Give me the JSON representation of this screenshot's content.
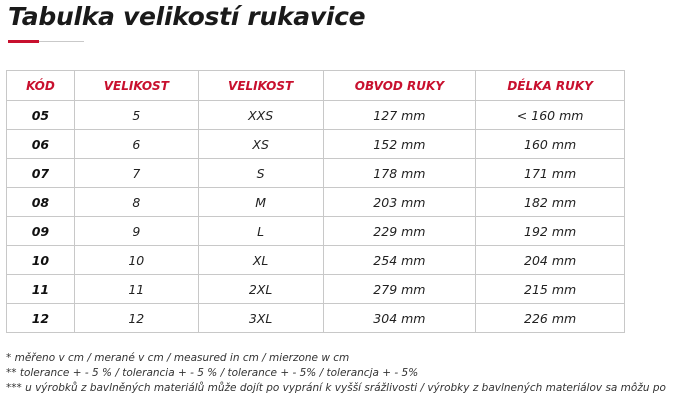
{
  "title": "Tabulka velikostí rukavice",
  "table": {
    "headers": [
      "KÓD",
      "VELIKOST",
      "VELIKOST",
      "OBVOD RUKY",
      "DÉLKA RUKY"
    ],
    "rows": [
      [
        "05",
        "5",
        "XXS",
        "127 mm",
        "< 160 mm"
      ],
      [
        "06",
        "6",
        "XS",
        "152 mm",
        "160 mm"
      ],
      [
        "07",
        "7",
        "S",
        "178 mm",
        "171 mm"
      ],
      [
        "08",
        "8",
        "M",
        "203 mm",
        "182 mm"
      ],
      [
        "09",
        "9",
        "L",
        "229 mm",
        "192 mm"
      ],
      [
        "10",
        "10",
        "XL",
        "254 mm",
        "204 mm"
      ],
      [
        "11",
        "11",
        "2XL",
        "279 mm",
        "215 mm"
      ],
      [
        "12",
        "12",
        "3XL",
        "304 mm",
        "226 mm"
      ]
    ]
  },
  "notes": [
    "* měřeno v cm / merané v cm / measured in cm / mierzone w cm",
    "** tolerance + - 5 % / tolerancia + - 5 % / tolerance + - 5% / tolerancja + - 5%",
    "*** u výrobků z bavlněných materiálů může dojít po vyprání k vyšší srážlivosti / výrobky z bavlnených materiálov sa môžu po"
  ],
  "colors": {
    "accent": "#c8102e",
    "border": "#c8c8c8",
    "text": "#222222"
  }
}
